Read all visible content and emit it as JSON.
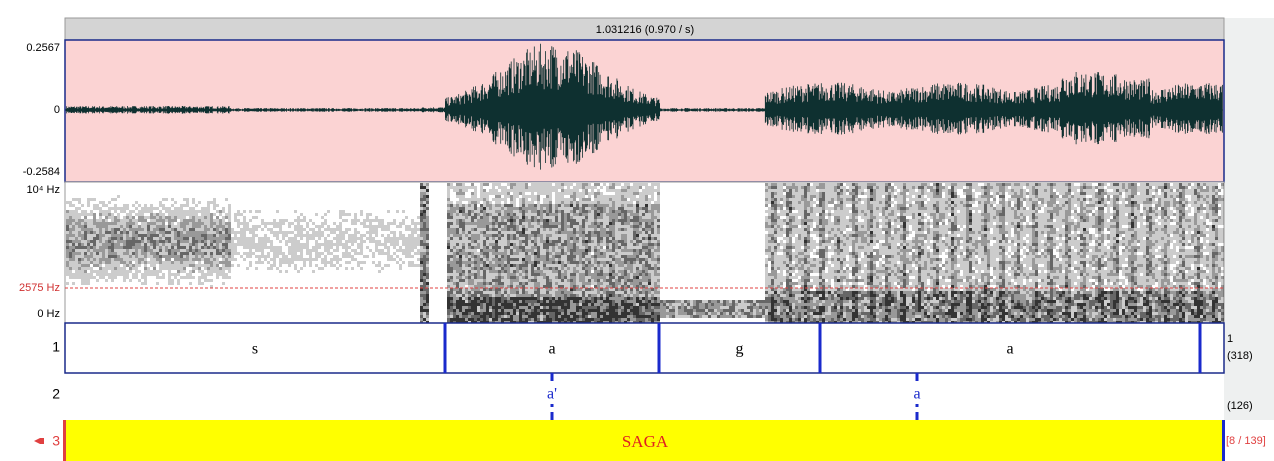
{
  "window": {
    "time_header": "1.031216 (0.970 / s)",
    "waveform": {
      "max_label": "0.2567",
      "zero_label": "0",
      "min_label": "-0.2584"
    },
    "spectrogram": {
      "max_label": "10⁴ Hz",
      "cursor_label": "2575 Hz",
      "min_label": "0 Hz"
    },
    "tiers": [
      {
        "number": "1",
        "intervals": [
          "s",
          "a",
          "g",
          "a"
        ],
        "right_labels": [
          "1",
          "(318)"
        ]
      },
      {
        "number": "2",
        "points": [
          "a'",
          "a"
        ],
        "right_label": "(126)"
      },
      {
        "number": "3",
        "intervals": [
          "SAGA"
        ],
        "right_label": "[8 / 139]"
      }
    ]
  }
}
